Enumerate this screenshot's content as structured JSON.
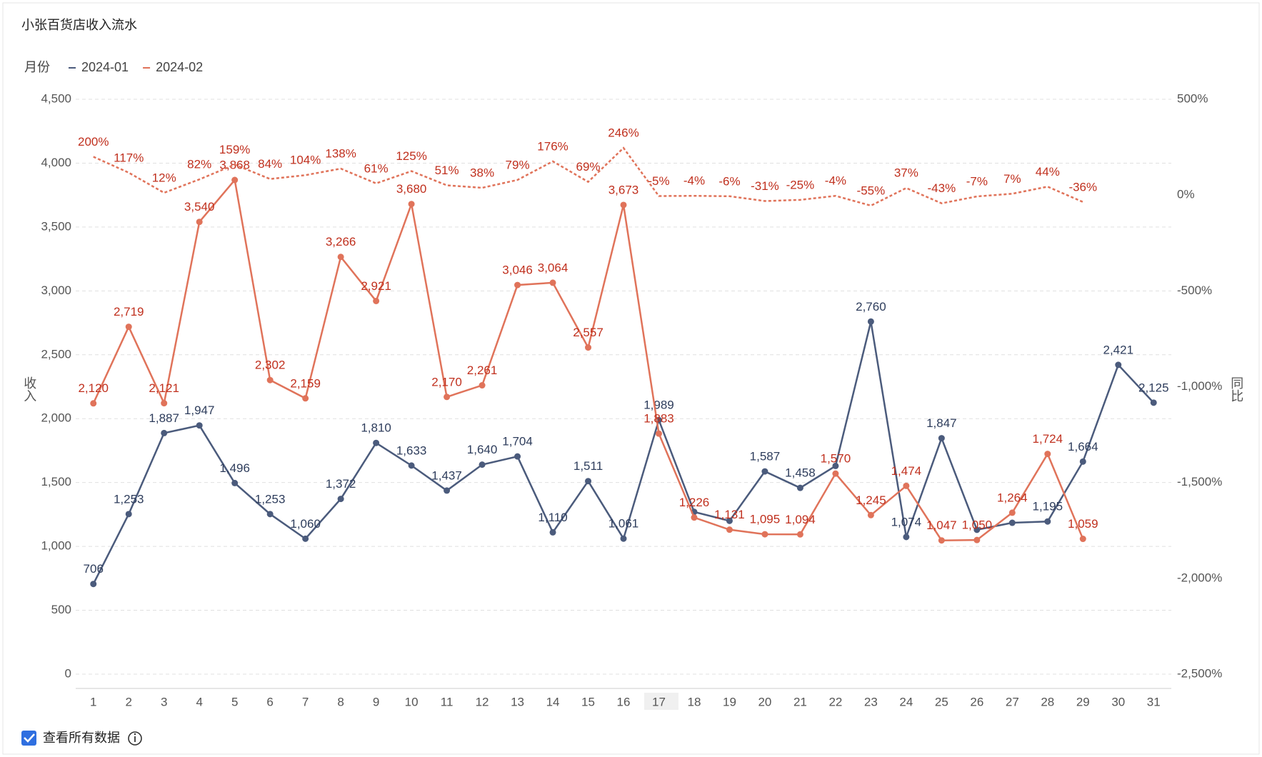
{
  "chart_data": {
    "type": "line",
    "title": "小张百货店收入流水",
    "legend_title": "月份",
    "ylabel": "收入",
    "y2label": "同比",
    "categories": [
      "1",
      "2",
      "3",
      "4",
      "5",
      "6",
      "7",
      "8",
      "9",
      "10",
      "11",
      "12",
      "13",
      "14",
      "15",
      "16",
      "17",
      "18",
      "19",
      "20",
      "21",
      "22",
      "23",
      "24",
      "25",
      "26",
      "27",
      "28",
      "29",
      "30",
      "31"
    ],
    "series": [
      {
        "name": "2024-01",
        "color": "#4b5b7c",
        "label_color": "#2e3d5c",
        "values": [
          706,
          1253,
          1887,
          1947,
          1496,
          1253,
          1060,
          1372,
          1810,
          1633,
          1437,
          1640,
          1704,
          1110,
          1511,
          1061,
          1989,
          1270,
          1200,
          1587,
          1458,
          1630,
          2760,
          1074,
          1847,
          1130,
          1185,
          1195,
          1664,
          2421,
          2125
        ],
        "value_labels": [
          "706",
          "1,253",
          "1,887",
          "1,947",
          "1,496",
          "1,253",
          "1,060",
          "1,372",
          "1,810",
          "1,633",
          "1,437",
          "1,640",
          "1,704",
          "1,110",
          "1,511",
          "1,061",
          "1,989",
          null,
          null,
          "1,587",
          "1,458",
          null,
          "2,760",
          "1,074",
          "1,847",
          null,
          null,
          "1,195",
          "1,664",
          "2,421",
          "2,125"
        ]
      },
      {
        "name": "2024-02",
        "color": "#e0735a",
        "label_color": "#c0301e",
        "values": [
          2120,
          2719,
          2121,
          3540,
          3868,
          2302,
          2159,
          3266,
          2921,
          3680,
          2170,
          2261,
          3046,
          3064,
          2557,
          3673,
          1883,
          1226,
          1131,
          1095,
          1094,
          1570,
          1245,
          1474,
          1047,
          1050,
          1264,
          1724,
          1059,
          null,
          null
        ],
        "value_labels": [
          "2,120",
          "2,719",
          "2,121",
          "3,540",
          "3,868",
          "2,302",
          "2,159",
          "3,266",
          "2,921",
          "3,680",
          "2,170",
          "2,261",
          "3,046",
          "3,064",
          "2,557",
          "3,673",
          "1,883",
          "1,226",
          "1,131",
          "1,095",
          "1,094",
          "1,570",
          "1,245",
          "1,474",
          "1,047",
          "1,050",
          "1,264",
          "1,724",
          "1,059",
          null,
          null
        ]
      },
      {
        "axis": "y2",
        "color": "#e0735a",
        "label_color": "#c0301e",
        "dashed": true,
        "values": [
          200,
          117,
          12,
          82,
          159,
          84,
          104,
          138,
          61,
          125,
          51,
          38,
          79,
          176,
          69,
          246,
          -5,
          -4,
          -6,
          -31,
          -25,
          -4,
          -55,
          37,
          -43,
          -7,
          7,
          44,
          -36,
          null,
          null
        ],
        "value_labels": [
          "200%",
          "117%",
          "12%",
          "82%",
          "159%",
          "84%",
          "104%",
          "138%",
          "61%",
          "125%",
          "51%",
          "38%",
          "79%",
          "176%",
          "69%",
          "246%",
          "-5%",
          "-4%",
          "-6%",
          "-31%",
          "-25%",
          "-4%",
          "-55%",
          "37%",
          "-43%",
          "-7%",
          "7%",
          "44%",
          "-36%",
          null,
          null
        ]
      }
    ],
    "ylim": [
      0,
      4500
    ],
    "yticks": [
      0,
      500,
      {
        "value": 1000,
        "label": "1,000"
      },
      {
        "value": 1500,
        "label": "1,500"
      },
      {
        "value": 2000,
        "label": "2,000"
      },
      {
        "value": 2500,
        "label": "2,500"
      },
      {
        "value": 3000,
        "label": "3,000"
      },
      {
        "value": 3500,
        "label": "3,500"
      },
      {
        "value": 4000,
        "label": "4,000"
      },
      {
        "value": 4500,
        "label": "4,500"
      }
    ],
    "y2lim": [
      -2500,
      500
    ],
    "y2ticks": [
      {
        "value": 500,
        "label": "500%"
      },
      {
        "value": 0,
        "label": "0%"
      },
      {
        "value": -500,
        "label": "-500%"
      },
      {
        "value": -1000,
        "label": "-1,000%"
      },
      {
        "value": -1500,
        "label": "-1,500%"
      },
      {
        "value": -2000,
        "label": "-2,000%"
      },
      {
        "value": -2500,
        "label": "-2,500%"
      }
    ],
    "grid": true,
    "checkbox_label": "查看所有数据"
  }
}
